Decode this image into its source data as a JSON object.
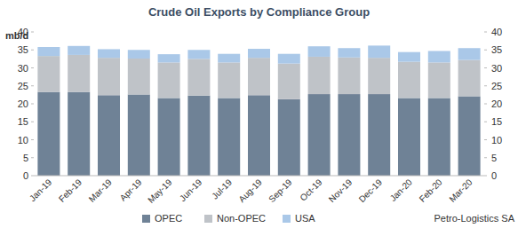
{
  "chart_data": {
    "type": "bar",
    "stacked": true,
    "title": "Crude Oil Exports by Compliance Group",
    "ylabel": "mb/d",
    "source": "Petro-Logistics SA",
    "categories": [
      "Jan-19",
      "Feb-19",
      "Mar-19",
      "Apr-19",
      "May-19",
      "Jun-19",
      "Jul-19",
      "Aug-19",
      "Sep-19",
      "Oct-19",
      "Nov-19",
      "Dec-19",
      "Jan-20",
      "Feb-20",
      "Mar-20"
    ],
    "series": [
      {
        "name": "OPEC",
        "color": "#6f8296",
        "values": [
          23.3,
          23.3,
          22.4,
          22.6,
          21.6,
          22.3,
          21.6,
          22.4,
          21.3,
          22.7,
          22.7,
          22.7,
          21.6,
          21.6,
          22.1
        ]
      },
      {
        "name": "Non-OPEC",
        "color": "#bfc3c8",
        "values": [
          10.0,
          10.3,
          10.4,
          10.0,
          9.9,
          10.2,
          9.9,
          10.4,
          9.9,
          10.4,
          10.2,
          10.1,
          10.1,
          9.9,
          10.1
        ]
      },
      {
        "name": "USA",
        "color": "#aac8e8",
        "values": [
          2.5,
          2.5,
          2.4,
          2.4,
          2.3,
          2.5,
          2.4,
          2.5,
          2.7,
          2.9,
          2.6,
          3.4,
          2.7,
          3.2,
          3.3
        ]
      }
    ],
    "ylim": [
      0,
      40
    ],
    "yticks": [
      0,
      5,
      10,
      15,
      20,
      25,
      30,
      35,
      40
    ],
    "y2lim": [
      0,
      40
    ],
    "y2ticks": [
      0,
      5,
      10,
      15,
      20,
      25,
      30,
      35,
      40
    ],
    "grid": false,
    "legend": "bottom"
  }
}
